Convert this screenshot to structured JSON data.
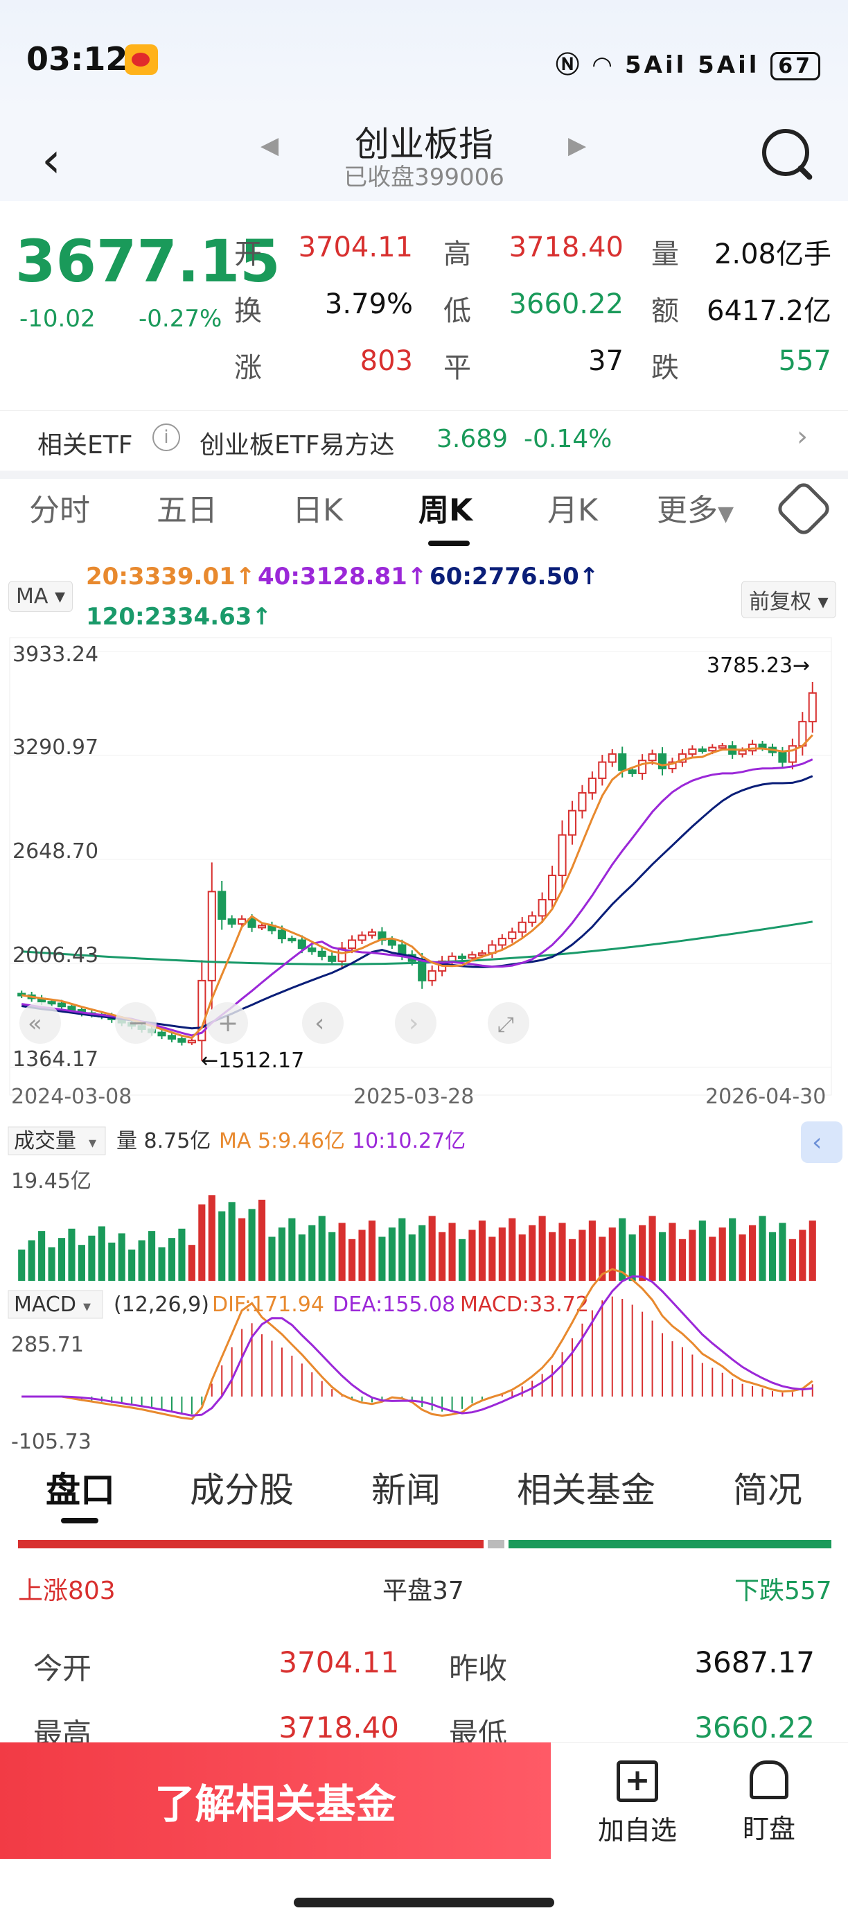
{
  "status_bar": {
    "time": "03:12",
    "network": "5Ail 5Ail",
    "battery": "67"
  },
  "header": {
    "title": "创业板指",
    "subtitle": "已收盘399006"
  },
  "quote": {
    "price": "3677.15",
    "change": "-10.02",
    "change_pct": "-0.27%",
    "open_label": "开",
    "open": "3704.11",
    "high_label": "高",
    "high": "3718.40",
    "volume_label": "量",
    "volume": "2.08亿手",
    "turnover_label": "换",
    "turnover": "3.79%",
    "low_label": "低",
    "low": "3660.22",
    "amount_label": "额",
    "amount": "6417.2亿",
    "up_label": "涨",
    "up": "803",
    "flat_label": "平",
    "flat": "37",
    "down_label": "跌",
    "down": "557"
  },
  "etf": {
    "label": "相关ETF",
    "name": "创业板ETF易方达",
    "price": "3.689",
    "change": "-0.14%"
  },
  "period_tabs": [
    "分时",
    "五日",
    "日K",
    "周K",
    "月K",
    "更多"
  ],
  "active_period": "周K",
  "ma": {
    "selector": "MA",
    "ma20": "20:3339.01↑",
    "ma40": "40:3128.81↑",
    "ma60": "60:2776.50↑",
    "ma120": "120:2334.63↑",
    "adjust": "前复权"
  },
  "colors": {
    "up": "#d8302f",
    "down": "#1a9a5a",
    "ma20": "#e8892e",
    "ma40": "#9b28d8",
    "ma60": "#0a1e78",
    "ma120": "#1a9a6a"
  },
  "chart_data": {
    "type": "candlestick",
    "y_ticks": [
      "3933.24",
      "3290.97",
      "2648.70",
      "2006.43",
      "1364.17"
    ],
    "ylim": [
      1364.17,
      3933.24
    ],
    "x_ticks": [
      "2024-03-08",
      "2025-03-28",
      "2026-04-30"
    ],
    "max_label": "3785.23→",
    "min_label": "←1512.17",
    "candles_close": [
      1810,
      1790,
      1770,
      1760,
      1740,
      1720,
      1700,
      1690,
      1680,
      1660,
      1640,
      1620,
      1600,
      1580,
      1560,
      1540,
      1520,
      1530,
      1900,
      2450,
      2280,
      2250,
      2280,
      2230,
      2240,
      2210,
      2160,
      2150,
      2100,
      2080,
      2050,
      2020,
      2100,
      2150,
      2180,
      2200,
      2150,
      2120,
      2060,
      2020,
      1900,
      1960,
      2020,
      2050,
      2040,
      2060,
      2070,
      2120,
      2160,
      2200,
      2260,
      2300,
      2400,
      2550,
      2800,
      2950,
      3060,
      3150,
      3250,
      3300,
      3200,
      3180,
      3260,
      3300,
      3210,
      3250,
      3300,
      3330,
      3320,
      3340,
      3350,
      3300,
      3320,
      3360,
      3340,
      3310,
      3250,
      3350,
      3500,
      3677
    ],
    "volume": {
      "label": "成交量",
      "value": "量 8.75亿",
      "ma5": "MA 5:9.46亿",
      "ma10": "10:10.27亿",
      "max_tick": "19.45亿"
    },
    "macd": {
      "label": "MACD",
      "params": "(12,26,9)",
      "dif": "DIF:171.94",
      "dea": "DEA:155.08",
      "macd": "MACD:33.72",
      "top_tick": "285.71",
      "bottom_tick": "-105.73"
    }
  },
  "bottom_tabs": [
    "盘口",
    "成分股",
    "新闻",
    "相关基金",
    "简况"
  ],
  "active_bottom": "盘口",
  "breadth": {
    "up": "上涨803",
    "flat": "平盘37",
    "down": "下跌557"
  },
  "detail": {
    "open_label": "今开",
    "open": "3704.11",
    "prev_label": "昨收",
    "prev": "3687.17",
    "high_label": "最高",
    "high": "3718.40",
    "low_label": "最低",
    "low": "3660.22"
  },
  "actions": {
    "learn": "了解相关基金",
    "watch": "加自选",
    "monitor": "盯盘"
  }
}
